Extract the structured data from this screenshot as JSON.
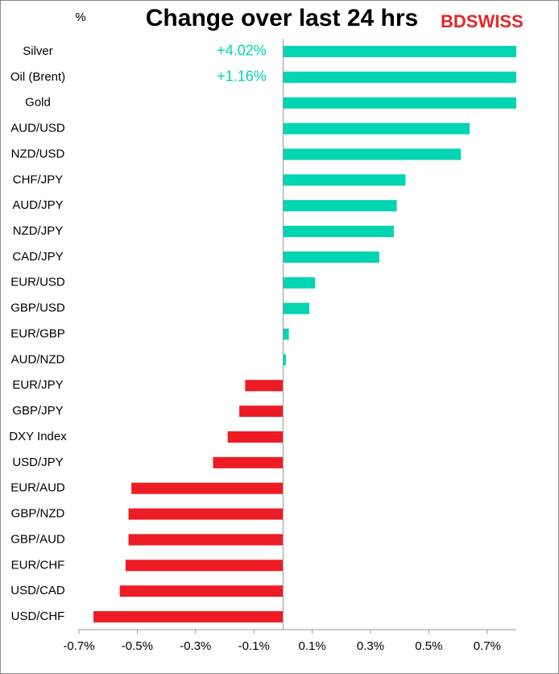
{
  "chart_data": {
    "type": "hbar",
    "title": "Change over last 24 hrs",
    "unit_label": "%",
    "brand": "BDSWISS",
    "categories": [
      "Silver",
      "Oil (Brent)",
      "Gold",
      "AUD/USD",
      "NZD/USD",
      "CHF/JPY",
      "AUD/JPY",
      "NZD/JPY",
      "CAD/JPY",
      "EUR/USD",
      "GBP/USD",
      "EUR/GBP",
      "AUD/NZD",
      "EUR/JPY",
      "GBP/JPY",
      "DXY Index",
      "USD/JPY",
      "EUR/AUD",
      "GBP/NZD",
      "GBP/AUD",
      "EUR/CHF",
      "USD/CAD",
      "USD/CHF"
    ],
    "values": [
      4.02,
      1.16,
      0.8,
      0.64,
      0.61,
      0.42,
      0.39,
      0.38,
      0.33,
      0.11,
      0.09,
      0.02,
      0.01,
      -0.13,
      -0.15,
      -0.19,
      -0.24,
      -0.52,
      -0.53,
      -0.53,
      -0.54,
      -0.56,
      -0.65
    ],
    "value_labels": [
      "+4.02%",
      "+1.16%",
      null,
      null,
      null,
      null,
      null,
      null,
      null,
      null,
      null,
      null,
      null,
      null,
      null,
      null,
      null,
      null,
      null,
      null,
      null,
      null,
      null
    ],
    "positive_color": "#00d4b0",
    "negative_color": "#ed1c24",
    "xlim": [
      -0.7,
      0.8
    ],
    "xticks": [
      {
        "value": -0.7,
        "label": "-0.7%"
      },
      {
        "value": -0.5,
        "label": "-0.5%"
      },
      {
        "value": -0.3,
        "label": "-0.3%"
      },
      {
        "value": -0.1,
        "label": "-0.1%"
      },
      {
        "value": 0.1,
        "label": "0.1%"
      },
      {
        "value": 0.3,
        "label": "0.3%"
      },
      {
        "value": 0.5,
        "label": "0.5%"
      },
      {
        "value": 0.7,
        "label": "0.7%"
      }
    ]
  }
}
